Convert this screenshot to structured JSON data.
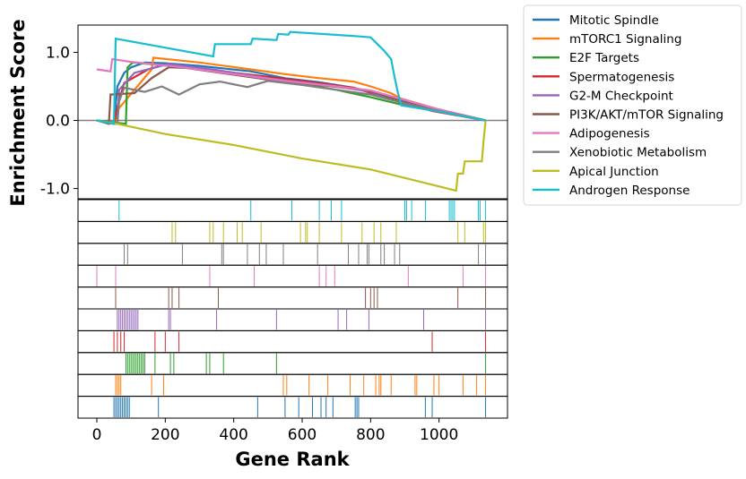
{
  "chart_data": {
    "type": "line",
    "xlabel": "Gene Rank",
    "ylabel": "Enrichment Score",
    "xlim": [
      -55,
      1200
    ],
    "ylim": [
      -1.15,
      1.4
    ],
    "x_ticks": [
      0,
      200,
      400,
      600,
      800,
      1000
    ],
    "x_tick_labels": [
      "0",
      "200",
      "400",
      "600",
      "800",
      "1000"
    ],
    "y_ticks": [
      1.0,
      0.0,
      -1.0
    ],
    "y_tick_labels": [
      "1.0",
      "0.0",
      "-1.0"
    ],
    "baseline": 0,
    "legend_position": "outside-right",
    "series": [
      {
        "name": "Mitotic Spindle",
        "color": "#1f77b4",
        "points": [
          [
            0,
            0
          ],
          [
            50,
            -0.05
          ],
          [
            60,
            0.5
          ],
          [
            80,
            0.7
          ],
          [
            100,
            0.78
          ],
          [
            140,
            0.85
          ],
          [
            200,
            0.84
          ],
          [
            300,
            0.8
          ],
          [
            450,
            0.72
          ],
          [
            550,
            0.62
          ],
          [
            650,
            0.56
          ],
          [
            750,
            0.48
          ],
          [
            850,
            0.36
          ],
          [
            920,
            0.25
          ],
          [
            1000,
            0.16
          ],
          [
            1136,
            0
          ]
        ],
        "hits": [
          50,
          55,
          60,
          65,
          70,
          75,
          80,
          85,
          90,
          95,
          180,
          470,
          550,
          590,
          630,
          655,
          670,
          690,
          755,
          760,
          765,
          960,
          980,
          1136
        ]
      },
      {
        "name": "mTORC1 Signaling",
        "color": "#ff7f0e",
        "points": [
          [
            0,
            0
          ],
          [
            55,
            -0.05
          ],
          [
            60,
            0.15
          ],
          [
            160,
            0.75
          ],
          [
            165,
            0.92
          ],
          [
            300,
            0.85
          ],
          [
            450,
            0.75
          ],
          [
            550,
            0.68
          ],
          [
            650,
            0.62
          ],
          [
            750,
            0.57
          ],
          [
            800,
            0.5
          ],
          [
            860,
            0.4
          ],
          [
            890,
            0.32
          ],
          [
            1000,
            0.16
          ],
          [
            1136,
            0
          ]
        ],
        "hits": [
          55,
          60,
          65,
          70,
          160,
          195,
          545,
          555,
          620,
          675,
          740,
          780,
          815,
          825,
          830,
          860,
          930,
          935,
          985,
          1000,
          1070,
          1110,
          1136
        ]
      },
      {
        "name": "E2F Targets",
        "color": "#2ca02c",
        "points": [
          [
            0,
            0
          ],
          [
            85,
            -0.05
          ],
          [
            90,
            0.78
          ],
          [
            105,
            0.85
          ],
          [
            150,
            0.83
          ],
          [
            250,
            0.78
          ],
          [
            400,
            0.7
          ],
          [
            520,
            0.62
          ],
          [
            600,
            0.54
          ],
          [
            700,
            0.45
          ],
          [
            800,
            0.34
          ],
          [
            900,
            0.22
          ],
          [
            1000,
            0.13
          ],
          [
            1136,
            0
          ]
        ],
        "hits": [
          85,
          90,
          95,
          100,
          105,
          110,
          115,
          120,
          125,
          130,
          135,
          140,
          170,
          215,
          225,
          320,
          330,
          370,
          525,
          1136
        ]
      },
      {
        "name": "Spermatogenesis",
        "color": "#d62728",
        "points": [
          [
            0,
            0
          ],
          [
            50,
            -0.05
          ],
          [
            60,
            0.2
          ],
          [
            80,
            0.55
          ],
          [
            150,
            0.75
          ],
          [
            200,
            0.82
          ],
          [
            300,
            0.76
          ],
          [
            450,
            0.67
          ],
          [
            600,
            0.58
          ],
          [
            750,
            0.48
          ],
          [
            900,
            0.25
          ],
          [
            980,
            0.14
          ],
          [
            1136,
            0
          ]
        ],
        "hits": [
          50,
          60,
          70,
          80,
          170,
          200,
          240,
          980,
          1136
        ]
      },
      {
        "name": "G2-M Checkpoint",
        "color": "#9467bd",
        "points": [
          [
            0,
            0
          ],
          [
            60,
            -0.05
          ],
          [
            65,
            0.45
          ],
          [
            110,
            0.7
          ],
          [
            210,
            0.83
          ],
          [
            350,
            0.74
          ],
          [
            500,
            0.62
          ],
          [
            700,
            0.5
          ],
          [
            800,
            0.42
          ],
          [
            900,
            0.24
          ],
          [
            1000,
            0.14
          ],
          [
            1136,
            0
          ]
        ],
        "hits": [
          60,
          65,
          70,
          75,
          80,
          85,
          90,
          95,
          100,
          105,
          110,
          115,
          120,
          210,
          215,
          350,
          525,
          705,
          730,
          795,
          955,
          1136
        ]
      },
      {
        "name": "PI3K/AKT/mTOR  Signaling",
        "color": "#8c564b",
        "points": [
          [
            0,
            0
          ],
          [
            35,
            -0.05
          ],
          [
            40,
            0.38
          ],
          [
            110,
            0.4
          ],
          [
            160,
            0.62
          ],
          [
            210,
            0.78
          ],
          [
            260,
            0.77
          ],
          [
            360,
            0.7
          ],
          [
            500,
            0.6
          ],
          [
            650,
            0.52
          ],
          [
            780,
            0.45
          ],
          [
            820,
            0.4
          ],
          [
            900,
            0.26
          ],
          [
            1000,
            0.16
          ],
          [
            1136,
            0
          ]
        ],
        "hits": [
          55,
          210,
          220,
          240,
          355,
          785,
          800,
          810,
          820,
          1055,
          1136
        ]
      },
      {
        "name": "Adipogenesis",
        "color": "#e377c2",
        "points": [
          [
            0,
            0.75
          ],
          [
            40,
            0.72
          ],
          [
            45,
            0.9
          ],
          [
            100,
            0.86
          ],
          [
            250,
            0.78
          ],
          [
            400,
            0.68
          ],
          [
            550,
            0.58
          ],
          [
            700,
            0.5
          ],
          [
            800,
            0.44
          ],
          [
            900,
            0.3
          ],
          [
            1000,
            0.16
          ],
          [
            1136,
            0
          ]
        ],
        "hits": [
          0,
          55,
          330,
          460,
          650,
          670,
          695,
          910,
          1070,
          1136
        ]
      },
      {
        "name": "Xenobiotic Metabolism",
        "color": "#7f7f7f",
        "points": [
          [
            0,
            0
          ],
          [
            60,
            -0.05
          ],
          [
            65,
            0.28
          ],
          [
            80,
            0.48
          ],
          [
            140,
            0.42
          ],
          [
            190,
            0.5
          ],
          [
            240,
            0.38
          ],
          [
            300,
            0.53
          ],
          [
            360,
            0.57
          ],
          [
            440,
            0.49
          ],
          [
            500,
            0.58
          ],
          [
            600,
            0.52
          ],
          [
            700,
            0.45
          ],
          [
            800,
            0.38
          ],
          [
            900,
            0.25
          ],
          [
            1000,
            0.14
          ],
          [
            1136,
            0
          ]
        ],
        "hits": [
          80,
          90,
          250,
          365,
          370,
          440,
          475,
          495,
          545,
          645,
          735,
          765,
          790,
          795,
          830,
          840,
          870,
          885,
          1115,
          1136
        ]
      },
      {
        "name": "Apical Junction",
        "color": "#bcbd22",
        "points": [
          [
            0,
            0
          ],
          [
            60,
            -0.05
          ],
          [
            200,
            -0.2
          ],
          [
            400,
            -0.36
          ],
          [
            600,
            -0.56
          ],
          [
            800,
            -0.72
          ],
          [
            1050,
            -1.03
          ],
          [
            1055,
            -0.78
          ],
          [
            1070,
            -0.78
          ],
          [
            1075,
            -0.6
          ],
          [
            1125,
            -0.6
          ],
          [
            1130,
            -0.3
          ],
          [
            1136,
            0
          ]
        ],
        "hits": [
          220,
          230,
          330,
          340,
          370,
          410,
          425,
          480,
          595,
          610,
          615,
          650,
          715,
          775,
          810,
          830,
          875,
          1055,
          1075,
          1130,
          1136
        ]
      },
      {
        "name": "Androgen Response",
        "color": "#17becf",
        "points": [
          [
            0,
            0
          ],
          [
            50,
            -0.05
          ],
          [
            55,
            1.2
          ],
          [
            340,
            0.94
          ],
          [
            345,
            1.12
          ],
          [
            450,
            1.12
          ],
          [
            455,
            1.2
          ],
          [
            525,
            1.18
          ],
          [
            530,
            1.27
          ],
          [
            560,
            1.26
          ],
          [
            565,
            1.3
          ],
          [
            750,
            1.24
          ],
          [
            800,
            1.22
          ],
          [
            820,
            1.12
          ],
          [
            840,
            1.02
          ],
          [
            860,
            0.9
          ],
          [
            870,
            0.64
          ],
          [
            880,
            0.4
          ],
          [
            890,
            0.22
          ],
          [
            1000,
            0.13
          ],
          [
            1136,
            0
          ]
        ],
        "hits": [
          65,
          450,
          570,
          650,
          685,
          715,
          900,
          905,
          920,
          960,
          1030,
          1035,
          1040,
          1045,
          1115,
          1120,
          1136
        ]
      }
    ]
  }
}
